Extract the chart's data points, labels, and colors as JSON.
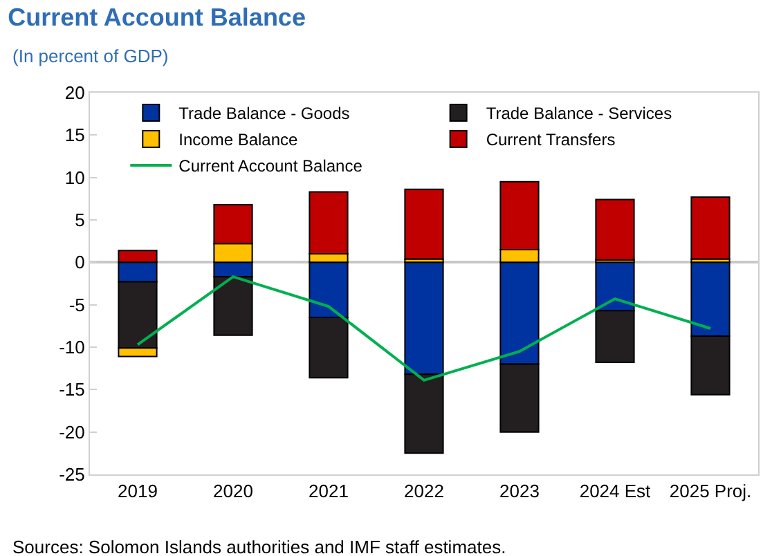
{
  "chart_data": {
    "type": "bar",
    "title": "Current Account Balance",
    "subtitle": "(In percent of GDP)",
    "categories": [
      "2019",
      "2020",
      "2021",
      "2022",
      "2023",
      "2024 Est",
      "2025 Proj."
    ],
    "stacked": true,
    "series": [
      {
        "name": "Trade Balance - Goods",
        "color": "#0033a0",
        "values": [
          -2.3,
          -1.7,
          -6.5,
          -13.2,
          -12.0,
          -5.7,
          -8.7
        ]
      },
      {
        "name": "Trade Balance - Services",
        "color": "#231f20",
        "values": [
          -7.8,
          -6.9,
          -7.1,
          -9.3,
          -8.0,
          -6.1,
          -6.9
        ]
      },
      {
        "name": "Income Balance",
        "color": "#ffc000",
        "values": [
          -1.0,
          2.2,
          1.0,
          0.4,
          1.5,
          0.3,
          0.4
        ]
      },
      {
        "name": "Current Transfers",
        "color": "#c00000",
        "values": [
          1.4,
          4.6,
          7.3,
          8.2,
          8.0,
          7.1,
          7.3
        ]
      },
      {
        "name": "Current Account Balance",
        "type": "line",
        "color": "#00b050",
        "values": [
          -9.7,
          -1.7,
          -5.2,
          -13.9,
          -10.5,
          -4.3,
          -7.8
        ]
      }
    ],
    "ylim": [
      -25,
      20
    ],
    "yticks": [
      -25,
      -20,
      -15,
      -10,
      -5,
      0,
      5,
      10,
      15,
      20
    ],
    "legend": "top",
    "marker": "none",
    "line_style": "solid",
    "annotations": [
      "Sources: Solomon Islands authorities and IMF staff estimates."
    ]
  }
}
